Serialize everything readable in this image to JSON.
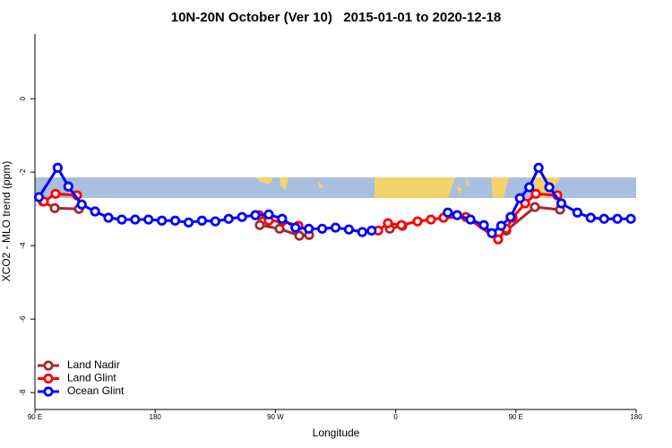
{
  "chart_data": {
    "type": "line",
    "title": "10N-20N October (Ver 10)   2015-01-01 to 2020-12-18",
    "x_label": "Longitude",
    "y_label": "XCO2 - MLO trend (ppm)",
    "xlim": [
      90,
      540
    ],
    "xticks": [
      {
        "value": 90,
        "label": "90 E"
      },
      180,
      {
        "value": 270,
        "label": "90 W"
      },
      {
        "value": 360,
        "label": "0"
      },
      {
        "value": 450,
        "label": "90 E"
      },
      {
        "value": 540,
        "label": "180"
      }
    ],
    "ylim": [
      -8.46,
      1.76
    ],
    "yticks": [
      0,
      -2,
      -4,
      -6,
      -8
    ],
    "legend": "bottom-left",
    "series": [
      {
        "name": "Land Nadir",
        "color": "#a52a2a",
        "x": [
          96,
          104.8,
          122.9,
          null,
          258.3,
          273.1,
          287.9,
          295.2,
          null,
          355.6,
          365,
          null,
          442.8,
          464.2,
          483
        ],
        "values": [
          -2.8,
          -2.98,
          -3.0,
          null,
          -3.44,
          -3.54,
          -3.73,
          -3.71,
          null,
          -3.54,
          -3.46,
          null,
          -3.59,
          -2.95,
          -3.02
        ]
      },
      {
        "name": "Land Glint",
        "color": "#ff0000",
        "x": [
          96.7,
          105.4,
          121.5,
          null,
          257.7,
          265,
          275,
          287.2,
          null,
          346.9,
          354.2,
          364.3,
          376.4,
          386.4,
          395.8,
          412.6,
          436.7,
          442.8,
          447.5,
          456.9,
          464.9,
          481
        ],
        "values": [
          -2.8,
          -2.59,
          -2.63,
          null,
          -3.17,
          -3.32,
          -3.34,
          -3.46,
          null,
          -3.59,
          -3.39,
          -3.44,
          -3.34,
          -3.29,
          -3.24,
          -3.22,
          -3.83,
          -3.54,
          -3.24,
          -2.85,
          -2.59,
          -2.63
        ]
      },
      {
        "name": "Ocean Glint",
        "color": "#0000ff",
        "x": [
          93,
          107,
          115,
          125,
          135,
          145,
          155,
          165,
          175,
          185,
          195,
          205,
          215,
          225,
          235,
          245,
          255,
          265,
          275,
          285,
          295,
          305,
          315,
          325,
          335,
          342,
          null,
          399,
          406,
          416,
          426,
          432,
          439,
          446,
          453,
          460,
          467,
          475,
          484,
          496,
          506,
          516,
          526,
          536
        ],
        "values": [
          -2.68,
          -1.88,
          -2.39,
          -2.88,
          -3.07,
          -3.24,
          -3.29,
          -3.29,
          -3.29,
          -3.32,
          -3.32,
          -3.37,
          -3.32,
          -3.34,
          -3.27,
          -3.22,
          -3.17,
          -3.15,
          -3.27,
          -3.51,
          -3.54,
          -3.54,
          -3.51,
          -3.56,
          -3.63,
          -3.59,
          null,
          -3.1,
          -3.17,
          -3.29,
          -3.44,
          -3.66,
          -3.46,
          -3.22,
          -2.71,
          -2.41,
          -1.88,
          -2.41,
          -2.85,
          -3.1,
          -3.24,
          -3.27,
          -3.27,
          -3.27
        ]
      }
    ]
  }
}
